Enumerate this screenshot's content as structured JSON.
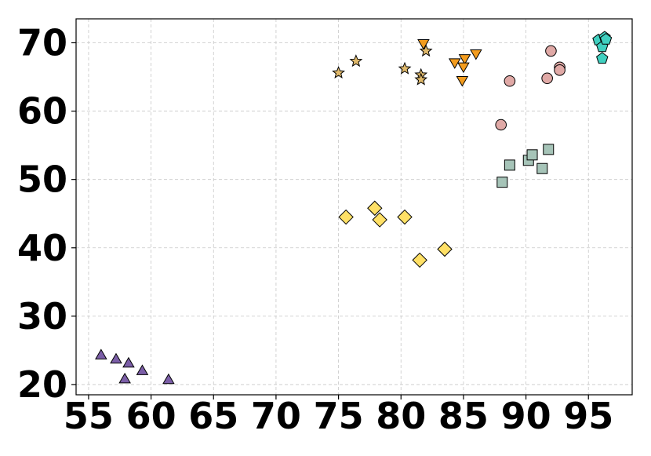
{
  "chart_data": {
    "type": "scatter",
    "title": "",
    "xlabel": "",
    "ylabel": "",
    "xlim": [
      54,
      98.5
    ],
    "ylim": [
      18.5,
      73.5
    ],
    "xticks": [
      55,
      60,
      65,
      70,
      75,
      80,
      85,
      90,
      95
    ],
    "yticks": [
      20,
      30,
      40,
      50,
      60,
      70
    ],
    "grid": true,
    "legend": "none",
    "series": [
      {
        "marker": "triangle-up",
        "color": "#7b5ea7",
        "points": [
          [
            56,
            24.2
          ],
          [
            57.2,
            23.6
          ],
          [
            58.2,
            23
          ],
          [
            57.9,
            20.7
          ],
          [
            59.3,
            21.9
          ],
          [
            61.4,
            20.6
          ]
        ]
      },
      {
        "marker": "diamond",
        "color": "#ffe066",
        "points": [
          [
            75.6,
            44.5
          ],
          [
            77.9,
            45.8
          ],
          [
            78.3,
            44.1
          ],
          [
            80.3,
            44.5
          ],
          [
            81.5,
            38.2
          ],
          [
            83.5,
            39.8
          ]
        ]
      },
      {
        "marker": "star",
        "color": "#e0b96b",
        "points": [
          [
            75,
            65.6
          ],
          [
            76.4,
            67.3
          ],
          [
            80.3,
            66.2
          ],
          [
            81.6,
            65.3
          ],
          [
            81.6,
            64.6
          ],
          [
            82,
            68.8
          ]
        ]
      },
      {
        "marker": "triangle-down",
        "color": "#f39c1e",
        "points": [
          [
            81.8,
            70
          ],
          [
            84.3,
            67.2
          ],
          [
            85.1,
            67.8
          ],
          [
            85,
            66.6
          ],
          [
            84.9,
            64.6
          ],
          [
            86,
            68.5
          ]
        ]
      },
      {
        "marker": "square",
        "color": "#a6c4b8",
        "points": [
          [
            88.1,
            49.6
          ],
          [
            88.7,
            52.1
          ],
          [
            90.2,
            52.8
          ],
          [
            90.5,
            53.6
          ],
          [
            91.3,
            51.6
          ],
          [
            91.8,
            54.4
          ]
        ]
      },
      {
        "marker": "circle",
        "color": "#e0a9a6",
        "points": [
          [
            88,
            58
          ],
          [
            88.7,
            64.4
          ],
          [
            91.7,
            64.8
          ],
          [
            92,
            68.8
          ],
          [
            92.7,
            66.4
          ],
          [
            92.7,
            66
          ]
        ]
      },
      {
        "marker": "pentagon",
        "color": "#40d0c0",
        "points": [
          [
            95.8,
            70.4
          ],
          [
            96.1,
            69.4
          ],
          [
            96.3,
            70.8
          ],
          [
            96.4,
            70.5
          ],
          [
            96.1,
            67.7
          ]
        ]
      }
    ]
  }
}
